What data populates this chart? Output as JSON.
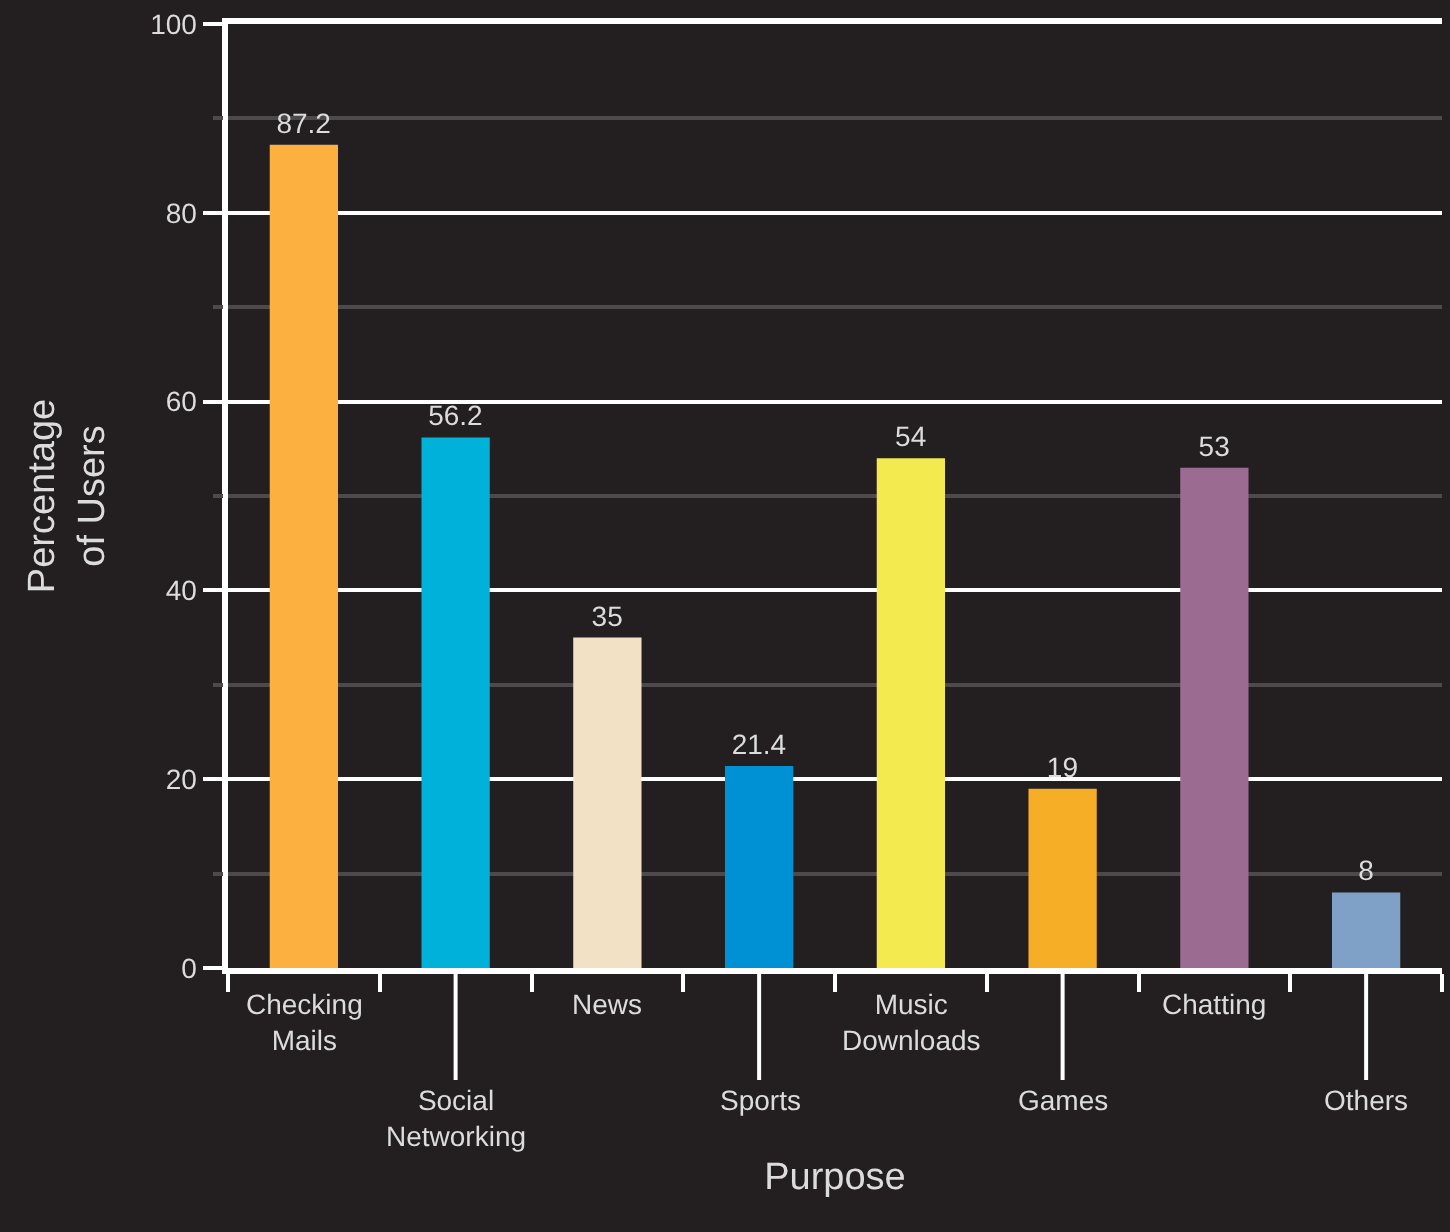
{
  "chart_data": {
    "type": "bar",
    "categories": [
      "Checking Mails",
      "Social Networking",
      "News",
      "Sports",
      "Music Downloads",
      "Games",
      "Chatting",
      "Others"
    ],
    "values": [
      87.2,
      56.2,
      35,
      21.4,
      54,
      19,
      53,
      8
    ],
    "colors": [
      "#fbb040",
      "#00b1d9",
      "#f2e1c4",
      "#0091d5",
      "#f2ea4f",
      "#f5ae26",
      "#9b6b91",
      "#7fa1c8"
    ],
    "xlabel": "Purpose",
    "ylabel": "Percentage of Users",
    "ylim": [
      0,
      100
    ],
    "yticks": [
      0,
      {
        "value": 10,
        "label": null
      },
      20,
      {
        "value": 30,
        "label": null
      },
      40,
      {
        "value": 50,
        "label": null
      },
      60,
      {
        "value": 70,
        "label": null
      },
      80,
      {
        "value": 90,
        "label": null
      },
      100
    ],
    "grid": "y",
    "data_labels": true
  }
}
